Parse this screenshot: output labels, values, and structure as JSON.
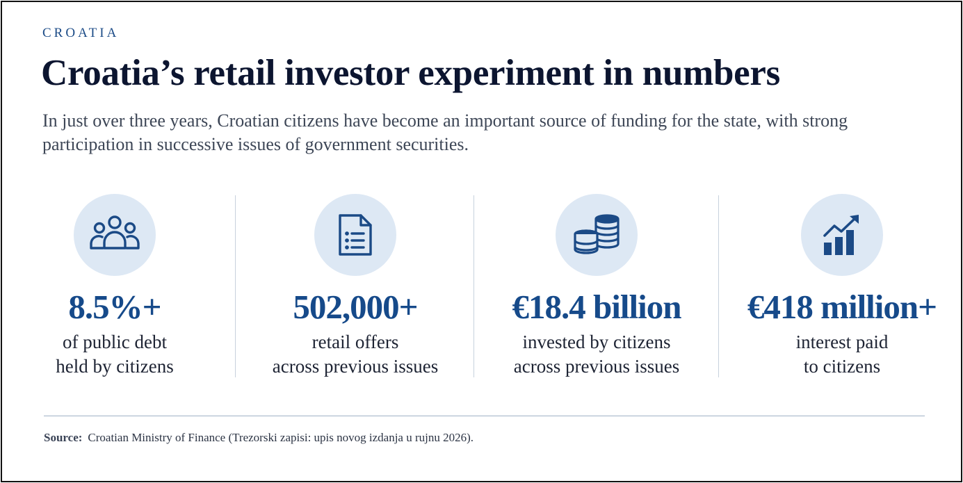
{
  "header": {
    "eyebrow": "CROATIA",
    "title": "Croatia’s retail investor experiment in numbers",
    "subtitle": "In just over three years, Croatian citizens have become an important source of funding for the state, with strong participation in successive issues of government securities."
  },
  "stats": [
    {
      "icon": "people-group-icon",
      "value": "8.5%+",
      "line1": "of public debt",
      "line2": "held by citizens"
    },
    {
      "icon": "document-list-icon",
      "value": "502,000+",
      "line1": "retail offers",
      "line2": "across previous issues"
    },
    {
      "icon": "coin-stacks-icon",
      "value": "€18.4 billion",
      "line1": "invested by citizens",
      "line2": "across previous issues"
    },
    {
      "icon": "growth-chart-icon",
      "value": "€418 million+",
      "line1": "interest paid",
      "line2": "to citizens"
    }
  ],
  "footer": {
    "source_label": "Source:",
    "source_text": "Croatian Ministry of Finance (Trezorski zapisi: upis novog izdanja u rujnu 2026)."
  },
  "colors": {
    "accent": "#164a8a",
    "icon_bg": "#dde8f4",
    "title": "#0c1530"
  }
}
